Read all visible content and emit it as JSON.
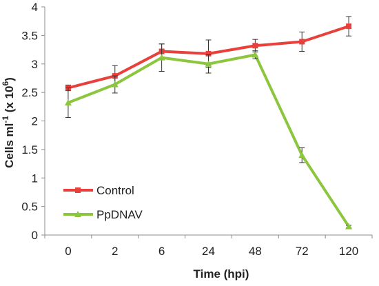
{
  "chart_data": {
    "type": "line",
    "title": "",
    "xlabel": "Time (hpi)",
    "ylabel_main": "Cells ml",
    "ylabel_sup1": "-1",
    "ylabel_mid": " (x 10",
    "ylabel_sup2": "6",
    "ylabel_end": ")",
    "categories": [
      "0",
      "2",
      "6",
      "24",
      "48",
      "72",
      "120"
    ],
    "ylim": [
      0,
      4
    ],
    "yticks": [
      "0",
      "0.5",
      "1",
      "1.5",
      "2",
      "2.5",
      "3",
      "3.5",
      "4"
    ],
    "ytick_values": [
      0,
      0.5,
      1,
      1.5,
      2,
      2.5,
      3,
      3.5,
      4
    ],
    "grid": false,
    "legend_position": "bottom-left",
    "series": [
      {
        "name": "Control",
        "color": "#e8413c",
        "marker": "square",
        "values": [
          2.58,
          2.79,
          3.22,
          3.18,
          3.32,
          3.39,
          3.66
        ],
        "errors": [
          0.05,
          0.18,
          0.13,
          0.24,
          0.11,
          0.17,
          0.17
        ]
      },
      {
        "name": "PpDNAV",
        "color": "#8cc63e",
        "marker": "triangle",
        "values": [
          2.32,
          2.64,
          3.11,
          3.0,
          3.16,
          1.4,
          0.15
        ],
        "errors": [
          0.26,
          0.15,
          0.24,
          0.16,
          0.07,
          0.13,
          0.02
        ]
      }
    ]
  }
}
